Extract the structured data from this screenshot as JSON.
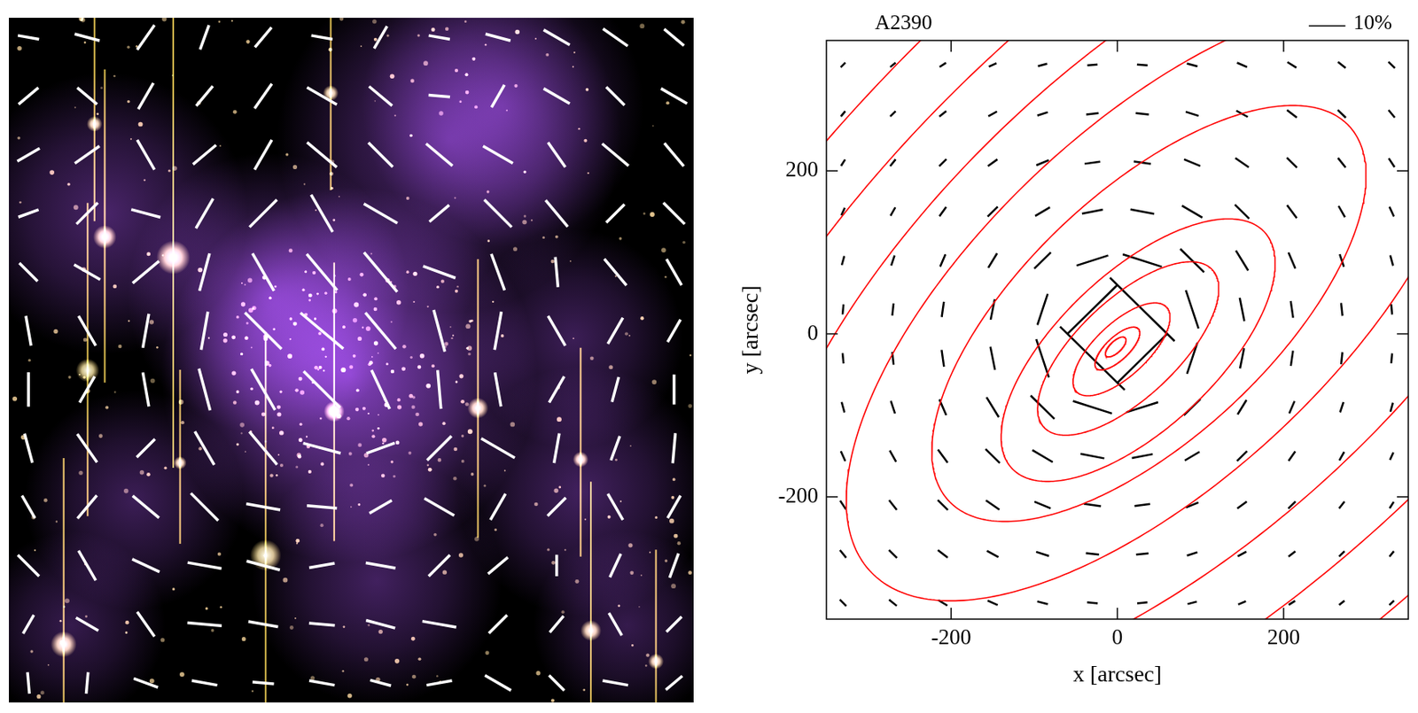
{
  "chart_data": [
    {
      "type": "map",
      "xlim": [
        -350,
        350
      ],
      "ylim": [
        -350,
        350
      ],
      "tick_labels": false,
      "mass_map": {
        "color": "#9b4de0",
        "peaks": [
          {
            "x": -2,
            "y": -15,
            "r": 120,
            "level": 1.0
          },
          {
            "x": 100,
            "y": 225,
            "r": 110,
            "level": 0.6
          },
          {
            "x": 155,
            "y": 260,
            "r": 90,
            "level": 0.5
          },
          {
            "x": -250,
            "y": 150,
            "r": 90,
            "level": 0.55
          },
          {
            "x": -85,
            "y": 68,
            "r": 90,
            "level": 0.6
          },
          {
            "x": 237,
            "y": -134,
            "r": 80,
            "level": 0.5
          },
          {
            "x": -222,
            "y": -143,
            "r": 70,
            "level": 0.45
          },
          {
            "x": 26,
            "y": -225,
            "r": 80,
            "level": 0.5
          },
          {
            "x": 227,
            "y": 22,
            "r": 70,
            "level": 0.45
          },
          {
            "x": -286,
            "y": -271,
            "r": 60,
            "level": 0.4
          },
          {
            "x": 282,
            "y": -271,
            "r": 60,
            "level": 0.4
          }
        ]
      },
      "sticks": {
        "color": "#ffffff",
        "x": [
          -330,
          -270,
          -210,
          -150,
          -90,
          -30,
          30,
          90,
          150,
          210,
          270,
          330
        ],
        "y": [
          330,
          270,
          210,
          150,
          90,
          30,
          -30,
          -90,
          -150,
          -210,
          -270,
          -330
        ],
        "angle": [
          [
            170,
            165,
            55,
            70,
            50,
            170,
            60,
            170,
            165,
            150,
            145,
            140
          ],
          [
            40,
            140,
            60,
            50,
            55,
            150,
            140,
            175,
            60,
            150,
            135,
            150
          ],
          [
            30,
            35,
            120,
            40,
            60,
            140,
            135,
            140,
            150,
            125,
            140,
            130
          ],
          [
            20,
            45,
            165,
            60,
            45,
            120,
            150,
            40,
            135,
            130,
            45,
            135
          ],
          [
            135,
            150,
            40,
            75,
            120,
            130,
            130,
            160,
            110,
            95,
            130,
            120
          ],
          [
            100,
            120,
            80,
            80,
            135,
            140,
            130,
            105,
            80,
            120,
            60,
            60
          ],
          [
            90,
            60,
            100,
            105,
            120,
            135,
            115,
            95,
            100,
            60,
            75,
            90
          ],
          [
            105,
            125,
            45,
            120,
            130,
            165,
            20,
            45,
            150,
            80,
            70,
            85
          ],
          [
            120,
            50,
            140,
            135,
            170,
            175,
            30,
            150,
            60,
            45,
            120,
            60
          ],
          [
            135,
            120,
            155,
            170,
            165,
            10,
            170,
            45,
            40,
            90,
            65,
            70
          ],
          [
            60,
            150,
            125,
            175,
            170,
            175,
            165,
            170,
            45,
            50,
            120,
            45
          ],
          [
            95,
            85,
            160,
            170,
            175,
            170,
            165,
            10,
            150,
            135,
            170,
            40
          ]
        ],
        "shear": [
          [
            5,
            6,
            7,
            6,
            6,
            5,
            6,
            5,
            6,
            7,
            7,
            6
          ],
          [
            6,
            6,
            7,
            6,
            7,
            8,
            7,
            5,
            6,
            7,
            6,
            7
          ],
          [
            6,
            7,
            8,
            7,
            8,
            9,
            8,
            8,
            8,
            7,
            8,
            7
          ],
          [
            5,
            7,
            7,
            8,
            9,
            10,
            9,
            6,
            9,
            8,
            6,
            7
          ],
          [
            6,
            7,
            8,
            9,
            10,
            11,
            12,
            8,
            9,
            7,
            8,
            7
          ],
          [
            7,
            8,
            8,
            9,
            12,
            13,
            11,
            10,
            9,
            8,
            7,
            6
          ],
          [
            8,
            7,
            8,
            10,
            11,
            12,
            10,
            9,
            8,
            7,
            6,
            7
          ],
          [
            7,
            8,
            6,
            9,
            10,
            9,
            7,
            8,
            9,
            7,
            6,
            7
          ],
          [
            6,
            7,
            8,
            9,
            8,
            7,
            6,
            8,
            7,
            6,
            7,
            6
          ],
          [
            7,
            8,
            7,
            8,
            8,
            6,
            7,
            7,
            6,
            5,
            6,
            6
          ],
          [
            5,
            6,
            7,
            8,
            7,
            6,
            7,
            8,
            6,
            5,
            6,
            5
          ],
          [
            5,
            5,
            6,
            6,
            5,
            6,
            5,
            6,
            7,
            5,
            6,
            5
          ]
        ]
      }
    },
    {
      "type": "sticks",
      "title": "A2390",
      "xlabel": "x [arcsec]",
      "ylabel": "y [arcsec]",
      "xlim": [
        -350,
        350
      ],
      "ylim": [
        -350,
        360
      ],
      "xticks": [
        -200,
        0,
        200
      ],
      "yticks": [
        -200,
        0,
        200
      ],
      "grid": false,
      "scale_bar": {
        "value": 10,
        "label": "10%",
        "arcsec": 44
      },
      "contours": {
        "color": "#ff0000",
        "line_style": "solid",
        "ellipses": [
          {
            "x": -2,
            "y": -16,
            "a": 16,
            "b": 7,
            "angle": 44
          },
          {
            "x": 0,
            "y": -18,
            "a": 35,
            "b": 14,
            "angle": 44
          },
          {
            "x": 5,
            "y": -19,
            "a": 75,
            "b": 32,
            "angle": 44
          },
          {
            "x": 13,
            "y": -18,
            "a": 140,
            "b": 60,
            "angle": 44
          },
          {
            "x": 25,
            "y": -20,
            "a": 210,
            "b": 95,
            "angle": 44
          },
          {
            "x": 38,
            "y": 25,
            "a": 333,
            "b": 150,
            "angle": 44
          },
          {
            "x": 50,
            "y": 40,
            "a": 480,
            "b": 215,
            "angle": 44
          },
          {
            "x": 70,
            "y": 50,
            "a": 640,
            "b": 290,
            "angle": 44
          },
          {
            "x": 90,
            "y": 60,
            "a": 820,
            "b": 370,
            "angle": 44
          },
          {
            "x": 110,
            "y": 70,
            "a": 1000,
            "b": 450,
            "angle": 44
          }
        ]
      },
      "sticks": {
        "color": "#000000",
        "x": [
          -330,
          -270,
          -210,
          -150,
          -90,
          -30,
          30,
          90,
          150,
          210,
          270,
          330
        ],
        "y": [
          330,
          270,
          210,
          150,
          90,
          30,
          -30,
          -90,
          -150,
          -210,
          -270,
          -330
        ],
        "angle": [
          [
            45,
            39,
            33,
            24,
            15,
            5,
            175,
            165,
            156,
            148,
            141,
            135
          ],
          [
            51,
            45,
            38,
            29,
            18,
            6,
            174,
            162,
            151,
            142,
            135,
            129
          ],
          [
            58,
            52,
            45,
            36,
            23,
            8,
            172,
            157,
            145,
            135,
            128,
            123
          ],
          [
            66,
            61,
            55,
            45,
            31,
            11,
            169,
            149,
            135,
            126,
            119,
            114
          ],
          [
            75,
            72,
            67,
            59,
            45,
            18,
            162,
            135,
            121,
            113,
            108,
            105
          ],
          [
            85,
            84,
            82,
            79,
            72,
            45,
            135,
            108,
            101,
            98,
            96,
            95
          ],
          [
            95,
            96,
            98,
            101,
            108,
            135,
            45,
            72,
            79,
            82,
            84,
            85
          ],
          [
            105,
            108,
            113,
            121,
            135,
            162,
            18,
            45,
            59,
            67,
            72,
            75
          ],
          [
            114,
            119,
            126,
            135,
            149,
            169,
            11,
            31,
            45,
            55,
            61,
            66
          ],
          [
            123,
            128,
            135,
            145,
            157,
            172,
            8,
            23,
            36,
            45,
            52,
            58
          ],
          [
            129,
            135,
            142,
            151,
            162,
            174,
            6,
            18,
            29,
            38,
            45,
            51
          ],
          [
            135,
            141,
            148,
            156,
            165,
            175,
            5,
            15,
            24,
            33,
            39,
            45
          ]
        ],
        "shear": [
          [
            1.8,
            1.9,
            2.1,
            2.3,
            2.6,
            2.8,
            2.9,
            3.0,
            3.0,
            2.9,
            2.7,
            2.5
          ],
          [
            1.9,
            2.1,
            2.4,
            2.7,
            3.0,
            3.4,
            3.6,
            3.7,
            3.6,
            3.4,
            3.1,
            2.7
          ],
          [
            2.1,
            2.4,
            2.8,
            3.2,
            3.7,
            4.3,
            4.7,
            4.8,
            4.5,
            3.9,
            3.4,
            2.9
          ],
          [
            2.3,
            2.7,
            3.2,
            3.9,
            4.7,
            5.8,
            6.6,
            6.5,
            5.5,
            4.5,
            3.6,
            3.0
          ],
          [
            2.6,
            3.0,
            3.7,
            4.7,
            6.4,
            9.1,
            11.2,
            9.2,
            6.5,
            4.8,
            3.7,
            3.0
          ],
          [
            2.8,
            3.4,
            4.3,
            5.8,
            9.1,
            19.2,
            25,
            11.2,
            6.6,
            4.7,
            3.6,
            2.9
          ],
          [
            2.9,
            3.6,
            4.7,
            6.6,
            11.2,
            25,
            19.2,
            9.1,
            5.8,
            4.3,
            3.4,
            2.8
          ],
          [
            3.0,
            3.7,
            4.8,
            6.5,
            9.2,
            11.2,
            9.1,
            6.4,
            4.7,
            3.7,
            3.0,
            2.6
          ],
          [
            3.0,
            3.6,
            4.5,
            5.5,
            6.5,
            6.6,
            5.8,
            4.7,
            3.9,
            3.2,
            2.7,
            2.3
          ],
          [
            2.9,
            3.4,
            3.9,
            4.5,
            4.8,
            4.7,
            4.3,
            3.7,
            3.2,
            2.8,
            2.4,
            2.1
          ],
          [
            2.7,
            3.1,
            3.4,
            3.6,
            3.7,
            3.6,
            3.4,
            3.0,
            2.7,
            2.4,
            2.1,
            1.9
          ],
          [
            2.5,
            2.7,
            2.9,
            3.0,
            3.0,
            2.9,
            2.8,
            2.6,
            2.3,
            2.1,
            1.9,
            1.8
          ]
        ]
      }
    }
  ]
}
